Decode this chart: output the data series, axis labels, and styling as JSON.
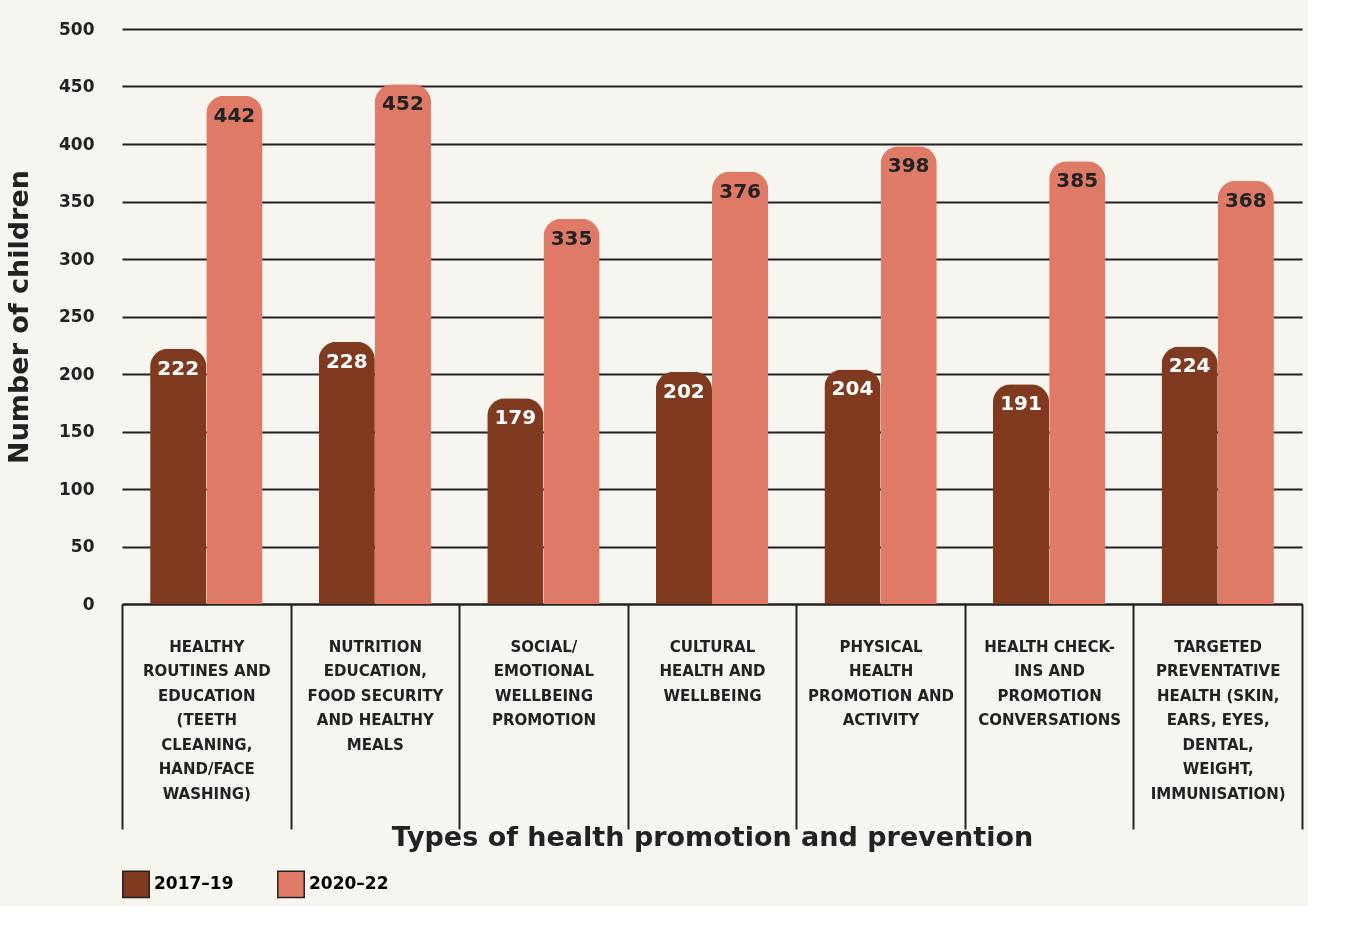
{
  "chart_data": {
    "type": "bar",
    "xlabel": "Types of health promotion and prevention",
    "ylabel": "Number of children",
    "categories": [
      "HEALTHY ROUTINES AND EDUCATION (TEETH CLEANING, HAND/FACE WASHING)",
      "NUTRITION EDUCATION, FOOD SECURITY AND HEALTHY MEALS",
      "SOCIAL/ EMOTIONAL WELLBEING PROMOTION",
      "CULTURAL HEALTH AND WELLBEING",
      "PHYSICAL HEALTH PROMOTION AND ACTIVITY",
      "HEALTH CHECK-INS AND PROMOTION CONVERSATIONS",
      "TARGETED PREVENTATIVE HEALTH (SKIN, EARS, EYES, DENTAL, WEIGHT, IMMUNISATION)"
    ],
    "series": [
      {
        "name": "2017–19",
        "color": "#7f3a20",
        "values": [
          222,
          228,
          179,
          202,
          204,
          191,
          224
        ]
      },
      {
        "name": "2020–22",
        "color": "#df7a66",
        "values": [
          442,
          452,
          335,
          376,
          398,
          385,
          368
        ]
      }
    ],
    "ylim": [
      0,
      500
    ],
    "yticks": [
      0,
      50,
      100,
      150,
      200,
      250,
      300,
      350,
      400,
      450,
      500
    ],
    "grid": "y",
    "legend": "bottom",
    "data_labels": true
  }
}
